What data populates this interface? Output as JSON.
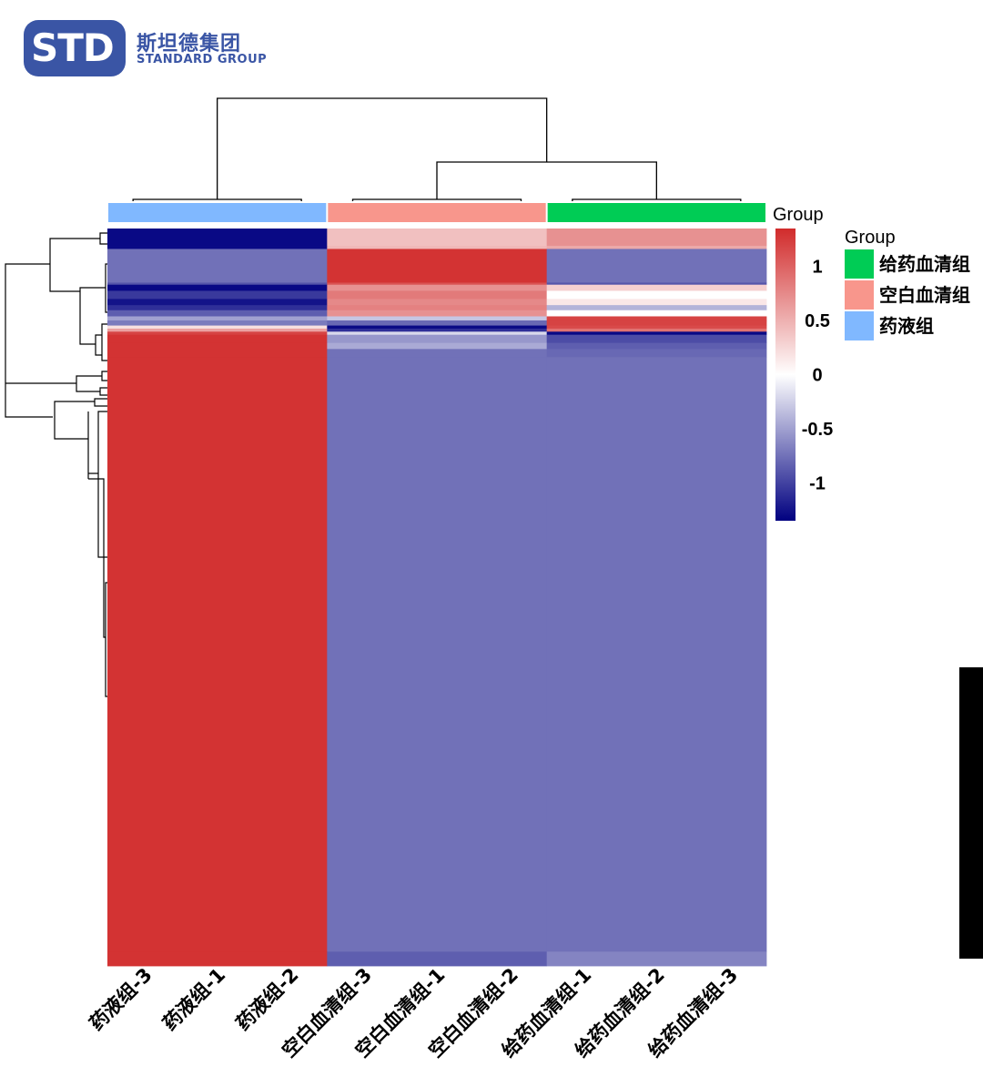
{
  "logo": {
    "letters": "STD",
    "name_cn": "斯坦德集团",
    "name_en": "STANDARD GROUP"
  },
  "chart_data": {
    "type": "heatmap",
    "title": "",
    "columns": [
      "药液组-3",
      "药液组-1",
      "药液组-2",
      "空白血清组-3",
      "空白血清组-1",
      "空白血清组-2",
      "给药血清组-1",
      "给药血清组-2",
      "给药血清组-3"
    ],
    "column_groups": [
      "药液组",
      "药液组",
      "药液组",
      "空白血清组",
      "空白血清组",
      "空白血清组",
      "给药血清组",
      "给药血清组",
      "给药血清组"
    ],
    "groups": [
      {
        "name": "给药血清组",
        "color": "#00cc55"
      },
      {
        "name": "空白血清组",
        "color": "#f8968c"
      },
      {
        "name": "药液组",
        "color": "#80b8ff"
      }
    ],
    "annotation_label": "Group",
    "legend_title": "Group",
    "color_scale": {
      "title": "Group",
      "min": -1.35,
      "max": 1.35,
      "ticks": [
        1,
        0.5,
        0,
        -0.5,
        -1
      ],
      "low_color": "#000080",
      "mid_color": "#ffffff",
      "high_color": "#d12b2b"
    },
    "row_blocks": [
      {
        "rows": 17,
        "values": [
          -1.3,
          0.4,
          0.7
        ]
      },
      {
        "rows": 3,
        "values": [
          -1.3,
          0.45,
          0.55
        ]
      },
      {
        "rows": 33,
        "values": [
          -0.75,
          1.3,
          -0.75
        ]
      },
      {
        "rows": 2,
        "values": [
          -0.9,
          1.1,
          -0.9
        ]
      },
      {
        "rows": 6,
        "values": [
          -1.3,
          0.7,
          0.3
        ]
      },
      {
        "rows": 8,
        "values": [
          -1.05,
          0.85,
          0.0
        ]
      },
      {
        "rows": 6,
        "values": [
          -1.25,
          0.75,
          0.15
        ]
      },
      {
        "rows": 5,
        "values": [
          -1.1,
          0.8,
          -0.4
        ]
      },
      {
        "rows": 6,
        "values": [
          -0.85,
          0.7,
          0.0
        ]
      },
      {
        "rows": 4,
        "values": [
          -0.5,
          -0.3,
          1.2
        ]
      },
      {
        "rows": 5,
        "values": [
          -0.7,
          -0.8,
          1.2
        ]
      },
      {
        "rows": 3,
        "values": [
          0.2,
          -1.3,
          1.15
        ]
      },
      {
        "rows": 3,
        "values": [
          0.6,
          -1.1,
          0.9
        ]
      },
      {
        "rows": 3,
        "values": [
          1.2,
          -0.2,
          -1.3
        ]
      },
      {
        "rows": 8,
        "values": [
          1.3,
          -0.55,
          -0.95
        ]
      },
      {
        "rows": 6,
        "values": [
          1.3,
          -0.45,
          -0.85
        ]
      },
      {
        "rows": 8,
        "values": [
          1.3,
          -0.75,
          -0.8
        ]
      },
      {
        "rows": 582,
        "values": [
          1.3,
          -0.75,
          -0.75
        ]
      },
      {
        "rows": 14,
        "values": [
          1.3,
          -0.85,
          -0.65
        ]
      }
    ]
  }
}
